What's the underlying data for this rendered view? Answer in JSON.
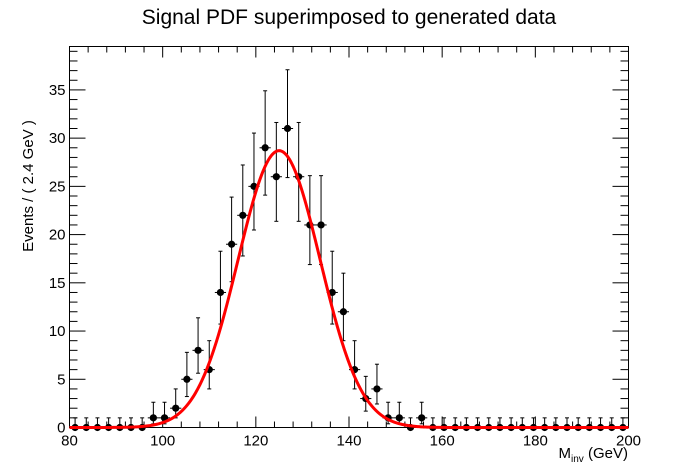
{
  "chart_data": {
    "type": "scatter",
    "title": "Signal PDF superimposed to generated data",
    "xlabel_main": "M",
    "xlabel_sub": "inv",
    "xlabel_unit": " (GeV)",
    "ylabel": "Events / ( 2.4 GeV )",
    "xlim": [
      80,
      200
    ],
    "ylim": [
      0,
      39.5
    ],
    "x_ticks": [
      80,
      100,
      120,
      140,
      160,
      180,
      200
    ],
    "y_ticks": [
      0,
      5,
      10,
      15,
      20,
      25,
      30,
      35
    ],
    "bin_width": 2.4,
    "series": [
      {
        "kind": "data-points-with-errors",
        "color": "#000000",
        "x": [
          81.2,
          83.6,
          86.0,
          88.4,
          90.8,
          93.2,
          95.6,
          98.0,
          100.4,
          102.8,
          105.2,
          107.6,
          110.0,
          112.4,
          114.8,
          117.2,
          119.6,
          122.0,
          124.4,
          126.8,
          129.2,
          131.6,
          134.0,
          136.4,
          138.8,
          141.2,
          143.6,
          146.0,
          148.4,
          150.8,
          153.2,
          155.6,
          158.0,
          160.4,
          162.8,
          165.2,
          167.6,
          170.0,
          172.4,
          174.8,
          177.2,
          179.6,
          182.0,
          184.4,
          186.8,
          189.2,
          191.6,
          194.0,
          196.4,
          198.8
        ],
        "y": [
          0,
          0,
          0,
          0,
          0,
          0,
          0,
          1,
          1,
          2,
          5,
          8,
          6,
          14,
          19,
          22,
          25,
          29,
          26,
          31,
          26,
          21,
          21,
          14,
          12,
          6,
          3,
          4,
          1,
          1,
          0,
          1,
          0,
          0,
          0,
          0,
          0,
          0,
          0,
          0,
          0,
          0,
          0,
          0,
          0,
          0,
          0,
          0,
          0,
          0
        ]
      },
      {
        "kind": "gaussian-fit-curve",
        "color": "#ff0000",
        "peak": 28.7,
        "mean": 125.0,
        "sigma": 8.8
      }
    ],
    "grid": false,
    "legend": "none"
  }
}
